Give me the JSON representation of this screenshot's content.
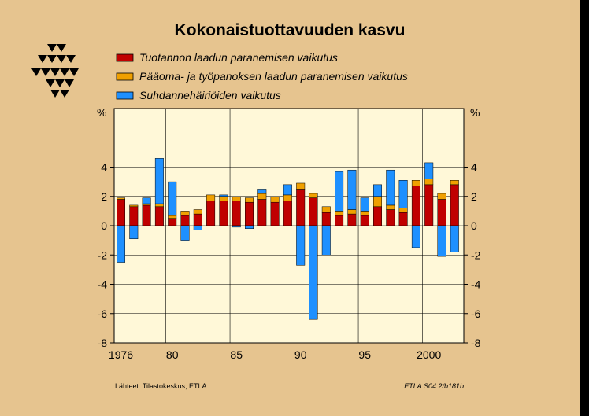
{
  "chart_data": {
    "type": "bar",
    "stacked": true,
    "title": "Kokonaistuottavuuden kasvu",
    "ylabel_left": "%",
    "ylabel_right": "%",
    "ylim": [
      -8,
      8
    ],
    "yticks": [
      -8,
      -6,
      -4,
      -2,
      0,
      2,
      4
    ],
    "x_years": [
      1976,
      1977,
      1978,
      1979,
      1980,
      1981,
      1982,
      1983,
      1984,
      1985,
      1986,
      1987,
      1988,
      1989,
      1990,
      1991,
      1992,
      1993,
      1994,
      1995,
      1996,
      1997,
      1998,
      1999,
      2000,
      2001,
      2002
    ],
    "xticks": [
      {
        "year": 1976,
        "label": "1976"
      },
      {
        "year": 1980,
        "label": "80"
      },
      {
        "year": 1985,
        "label": "85"
      },
      {
        "year": 1990,
        "label": "90"
      },
      {
        "year": 1995,
        "label": "95"
      },
      {
        "year": 2000,
        "label": "2000"
      }
    ],
    "grid_x_years": [
      1980,
      1985,
      1990,
      1995,
      2000
    ],
    "legend_placement": "top",
    "series": [
      {
        "name": "Tuotannon laadun paranemisen vaikutus",
        "color": "#c00000",
        "values": [
          1.8,
          1.3,
          1.4,
          1.3,
          0.5,
          0.7,
          0.8,
          1.7,
          1.7,
          1.7,
          1.6,
          1.8,
          1.6,
          1.7,
          2.5,
          1.9,
          0.9,
          0.7,
          0.8,
          0.7,
          1.3,
          1.1,
          0.9,
          2.7,
          2.8,
          1.8,
          2.8
        ]
      },
      {
        "name": "Pääoma- ja työpanoksen laadun paranemisen vaikutus",
        "color": "#f0a000",
        "values": [
          0.1,
          0.1,
          0.1,
          0.2,
          0.2,
          0.3,
          0.3,
          0.4,
          0.3,
          0.3,
          0.3,
          0.4,
          0.4,
          0.4,
          0.4,
          0.3,
          0.4,
          0.3,
          0.3,
          0.3,
          0.7,
          0.3,
          0.3,
          0.4,
          0.4,
          0.4,
          0.3
        ]
      },
      {
        "name": "Suhdannehäiriöiden vaikutus",
        "color": "#1e90ff",
        "values": [
          -2.5,
          -0.9,
          0.4,
          3.1,
          2.3,
          -1.0,
          -0.3,
          0.0,
          0.1,
          -0.1,
          -0.2,
          0.3,
          0.0,
          0.7,
          -2.7,
          -6.4,
          -2.0,
          2.7,
          2.7,
          0.9,
          0.8,
          2.4,
          1.9,
          -1.5,
          1.1,
          -2.1,
          -1.8
        ]
      }
    ],
    "footer_left": "Lähteet:   Tilastokeskus, ETLA.",
    "footer_right": "ETLA S04.2/b181b"
  }
}
